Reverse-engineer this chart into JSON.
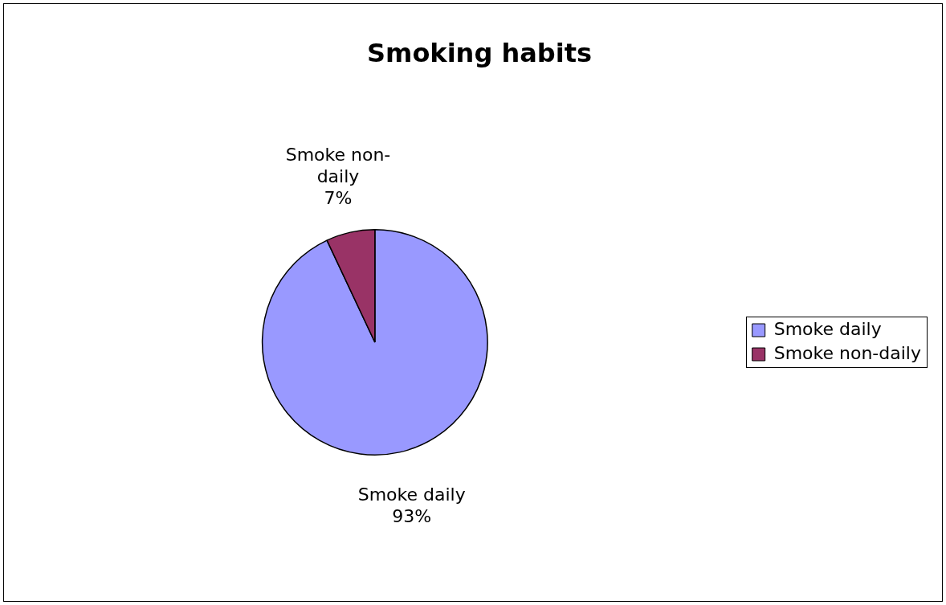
{
  "chart_data": {
    "type": "pie",
    "title": "Smoking habits",
    "categories": [
      "Smoke daily",
      "Smoke non-daily"
    ],
    "values": [
      93,
      7
    ],
    "colors": [
      "#9999ff",
      "#993366"
    ],
    "value_labels": [
      "93%",
      "7%"
    ],
    "legend": "right"
  }
}
